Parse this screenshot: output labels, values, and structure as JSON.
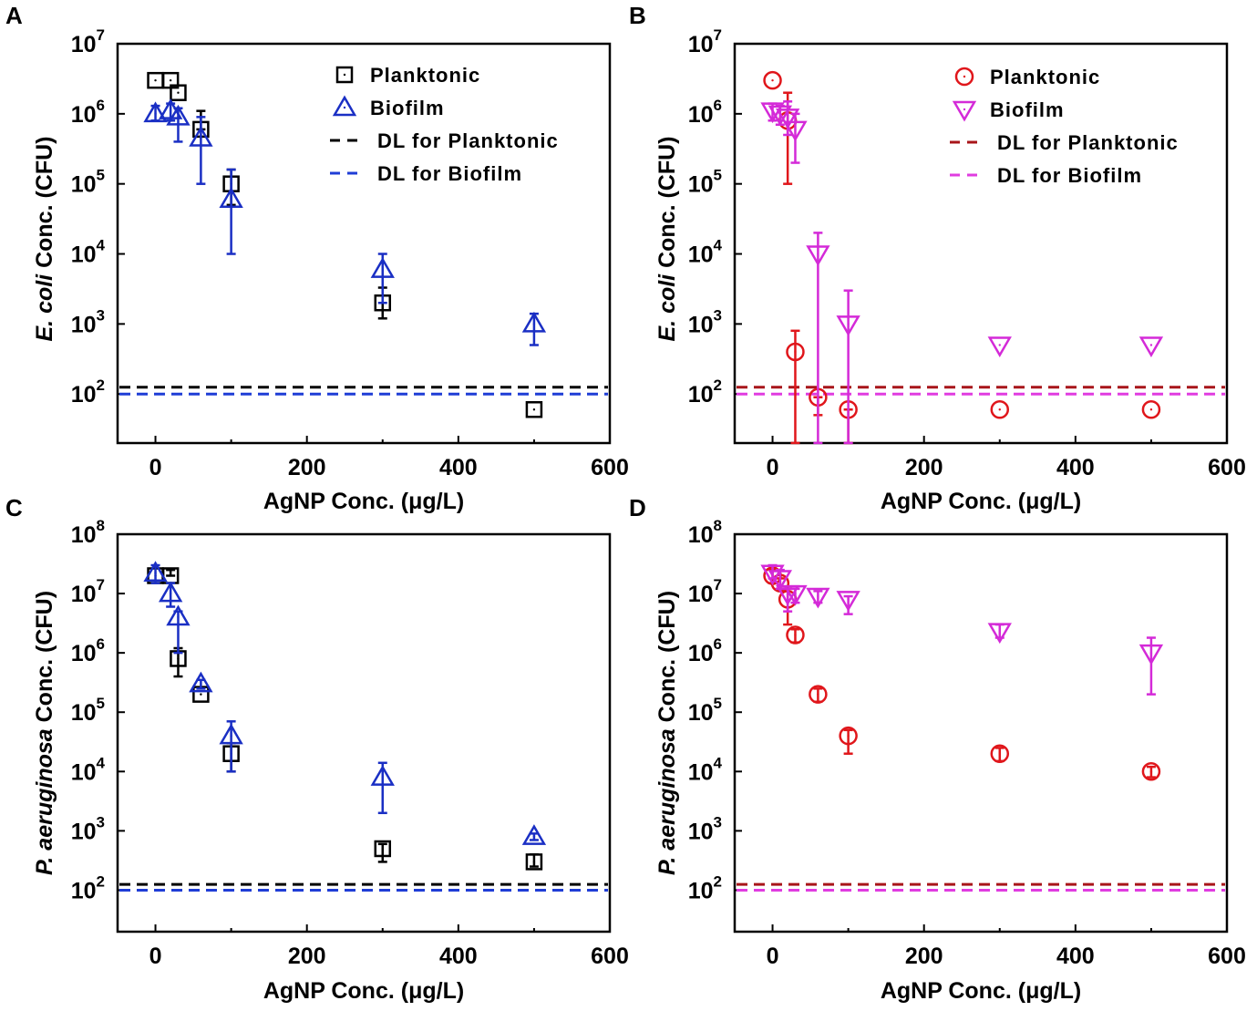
{
  "colors": {
    "black": "#000000",
    "blue": "#1a2fc4",
    "red": "#e0161b",
    "magenta": "#d42ad8",
    "darkred": "#a8151a",
    "dlblue": "#1f3dd6",
    "dlmagenta": "#e03ce0"
  },
  "chart_data": [
    {
      "panel": "A",
      "type": "scatter",
      "yscale": "log",
      "xlim": [
        -50,
        600
      ],
      "ylim_log10": [
        1.3,
        7
      ],
      "x_ticks": [
        0,
        200,
        400,
        600
      ],
      "x_tick_labels": [
        "0",
        "200",
        "400",
        "600"
      ],
      "y_ticks": [
        2,
        3,
        4,
        5,
        6,
        7
      ],
      "y_tick_labels": [
        "10",
        "10",
        "10",
        "10",
        "10",
        "10"
      ],
      "y_tick_exponents": [
        "2",
        "3",
        "4",
        "5",
        "6",
        "7"
      ],
      "xlabel": "AgNP Conc. (μg/L)",
      "ylabel_italic": "E. coli",
      "ylabel_rest": " Conc. (CFU)",
      "legend": {
        "position": "top-right",
        "entries": [
          "Planktonic",
          "Biofilm",
          "DL for Planktonic",
          "DL for Biofilm"
        ]
      },
      "series": [
        {
          "name": "Planktonic",
          "marker": "square",
          "color": "black",
          "x": [
            0,
            20,
            30,
            60,
            100,
            300,
            500
          ],
          "y": [
            3000000,
            3000000,
            2000000,
            600000,
            100000,
            2000,
            60
          ],
          "err_up": [
            3000000,
            3000000,
            2000000,
            1100000,
            160000,
            3300,
            60
          ],
          "err_down": [
            3000000,
            3000000,
            2000000,
            600000,
            50000,
            1200,
            60
          ]
        },
        {
          "name": "Biofilm",
          "marker": "triangle-up",
          "color": "blue",
          "x": [
            0,
            20,
            30,
            60,
            100,
            300,
            500
          ],
          "y": [
            1000000,
            1100000,
            900000,
            450000,
            60000,
            6000,
            1000
          ],
          "err_up": [
            1300000,
            1400000,
            1200000,
            900000,
            160000,
            10000,
            1400
          ],
          "err_down": [
            800000,
            800000,
            400000,
            100000,
            10000,
            2000,
            500
          ]
        }
      ],
      "dl_lines": [
        {
          "name": "DL for Planktonic",
          "y": 125,
          "color": "black"
        },
        {
          "name": "DL for Biofilm",
          "y": 100,
          "color": "dlblue"
        }
      ]
    },
    {
      "panel": "B",
      "type": "scatter",
      "yscale": "log",
      "xlim": [
        -50,
        600
      ],
      "ylim_log10": [
        1.3,
        7
      ],
      "x_ticks": [
        0,
        200,
        400,
        600
      ],
      "x_tick_labels": [
        "0",
        "200",
        "400",
        "600"
      ],
      "y_ticks": [
        2,
        3,
        4,
        5,
        6,
        7
      ],
      "y_tick_labels": [
        "10",
        "10",
        "10",
        "10",
        "10",
        "10"
      ],
      "y_tick_exponents": [
        "2",
        "3",
        "4",
        "5",
        "6",
        "7"
      ],
      "xlabel": "AgNP Conc. (μg/L)",
      "ylabel_italic": "E. coli",
      "ylabel_rest": " Conc. (CFU)",
      "legend": {
        "position": "top-right",
        "entries": [
          "Planktonic",
          "Biofilm",
          "DL for Planktonic",
          "DL for Biofilm"
        ]
      },
      "series": [
        {
          "name": "Planktonic",
          "marker": "circle",
          "color": "red",
          "x": [
            0,
            20,
            30,
            60,
            100,
            300,
            500
          ],
          "y": [
            3000000,
            800000,
            400,
            90,
            60,
            60,
            60
          ],
          "err_up": [
            3000000,
            2000000,
            800,
            90,
            60,
            60,
            60
          ],
          "err_down": [
            3000000,
            100000,
            20,
            50,
            20,
            60,
            60
          ]
        },
        {
          "name": "Biofilm",
          "marker": "triangle-down",
          "color": "magenta",
          "x": [
            0,
            10,
            20,
            30,
            60,
            100,
            300,
            500
          ],
          "y": [
            1100000,
            1000000,
            900000,
            600000,
            10000,
            1000,
            500,
            500
          ],
          "err_up": [
            1400000,
            1300000,
            1500000,
            1000000,
            20000,
            3000,
            500,
            500
          ],
          "err_down": [
            800000,
            700000,
            500000,
            200000,
            20,
            20,
            500,
            500
          ]
        }
      ],
      "dl_lines": [
        {
          "name": "DL for Planktonic",
          "y": 125,
          "color": "darkred"
        },
        {
          "name": "DL for Biofilm",
          "y": 100,
          "color": "dlmagenta"
        }
      ]
    },
    {
      "panel": "C",
      "type": "scatter",
      "yscale": "log",
      "xlim": [
        -50,
        600
      ],
      "ylim_log10": [
        1.3,
        8
      ],
      "x_ticks": [
        0,
        200,
        400,
        600
      ],
      "x_tick_labels": [
        "0",
        "200",
        "400",
        "600"
      ],
      "y_ticks": [
        2,
        3,
        4,
        5,
        6,
        7,
        8
      ],
      "y_tick_labels": [
        "10",
        "10",
        "10",
        "10",
        "10",
        "10",
        "10"
      ],
      "y_tick_exponents": [
        "2",
        "3",
        "4",
        "5",
        "6",
        "7",
        "8"
      ],
      "xlabel": "AgNP Conc. (μg/L)",
      "ylabel_italic": "P. aeruginosa",
      "ylabel_rest": " Conc. (CFU)",
      "legend": null,
      "series": [
        {
          "name": "Planktonic",
          "marker": "square",
          "color": "black",
          "x": [
            0,
            20,
            30,
            60,
            100,
            300,
            500
          ],
          "y": [
            20000000,
            20000000,
            800000,
            200000,
            20000,
            500,
            300
          ],
          "err_up": [
            20000000,
            25000000,
            1200000,
            200000,
            30000,
            600,
            400
          ],
          "err_down": [
            20000000,
            20000000,
            400000,
            200000,
            10000,
            300,
            250
          ]
        },
        {
          "name": "Biofilm",
          "marker": "triangle-up",
          "color": "blue",
          "x": [
            0,
            20,
            30,
            60,
            100,
            300,
            500
          ],
          "y": [
            22000000,
            10000000,
            4000000,
            300000,
            40000,
            8000,
            800
          ],
          "err_up": [
            30000000,
            15000000,
            5000000,
            350000,
            70000,
            14000,
            900
          ],
          "err_down": [
            15000000,
            6000000,
            1000000,
            250000,
            10000,
            2000,
            700
          ]
        }
      ],
      "dl_lines": [
        {
          "name": "DL for Planktonic",
          "y": 125,
          "color": "black"
        },
        {
          "name": "DL for Biofilm",
          "y": 100,
          "color": "dlblue"
        }
      ]
    },
    {
      "panel": "D",
      "type": "scatter",
      "yscale": "log",
      "xlim": [
        -50,
        600
      ],
      "ylim_log10": [
        1.3,
        8
      ],
      "x_ticks": [
        0,
        200,
        400,
        600
      ],
      "x_tick_labels": [
        "0",
        "200",
        "400",
        "600"
      ],
      "y_ticks": [
        2,
        3,
        4,
        5,
        6,
        7,
        8
      ],
      "y_tick_labels": [
        "10",
        "10",
        "10",
        "10",
        "10",
        "10",
        "10"
      ],
      "y_tick_exponents": [
        "2",
        "3",
        "4",
        "5",
        "6",
        "7",
        "8"
      ],
      "xlabel": "AgNP Conc. (μg/L)",
      "ylabel_italic": "P. aeruginosa",
      "ylabel_rest": " Conc. (CFU)",
      "legend": null,
      "series": [
        {
          "name": "Planktonic",
          "marker": "circle",
          "color": "red",
          "x": [
            0,
            10,
            20,
            30,
            60,
            100,
            300,
            500
          ],
          "y": [
            20000000,
            15000000,
            8000000,
            2000000,
            200000,
            40000,
            20000,
            10000
          ],
          "err_up": [
            25000000,
            18000000,
            12000000,
            2500000,
            250000,
            50000,
            25000,
            12000
          ],
          "err_down": [
            15000000,
            12000000,
            3000000,
            1500000,
            150000,
            20000,
            15000,
            8000
          ]
        },
        {
          "name": "Biofilm",
          "marker": "triangle-down",
          "color": "magenta",
          "x": [
            0,
            10,
            20,
            30,
            60,
            100,
            300,
            500
          ],
          "y": [
            22000000,
            18000000,
            10000000,
            10000000,
            9000000,
            8000000,
            2300000,
            1000000
          ],
          "err_up": [
            30000000,
            25000000,
            12000000,
            12000000,
            11000000,
            9000000,
            3000000,
            1800000
          ],
          "err_down": [
            18000000,
            12000000,
            5000000,
            7000000,
            7000000,
            4500000,
            1800000,
            200000
          ]
        }
      ],
      "dl_lines": [
        {
          "name": "DL for Planktonic",
          "y": 125,
          "color": "darkred"
        },
        {
          "name": "DL for Biofilm",
          "y": 100,
          "color": "dlmagenta"
        }
      ]
    }
  ]
}
